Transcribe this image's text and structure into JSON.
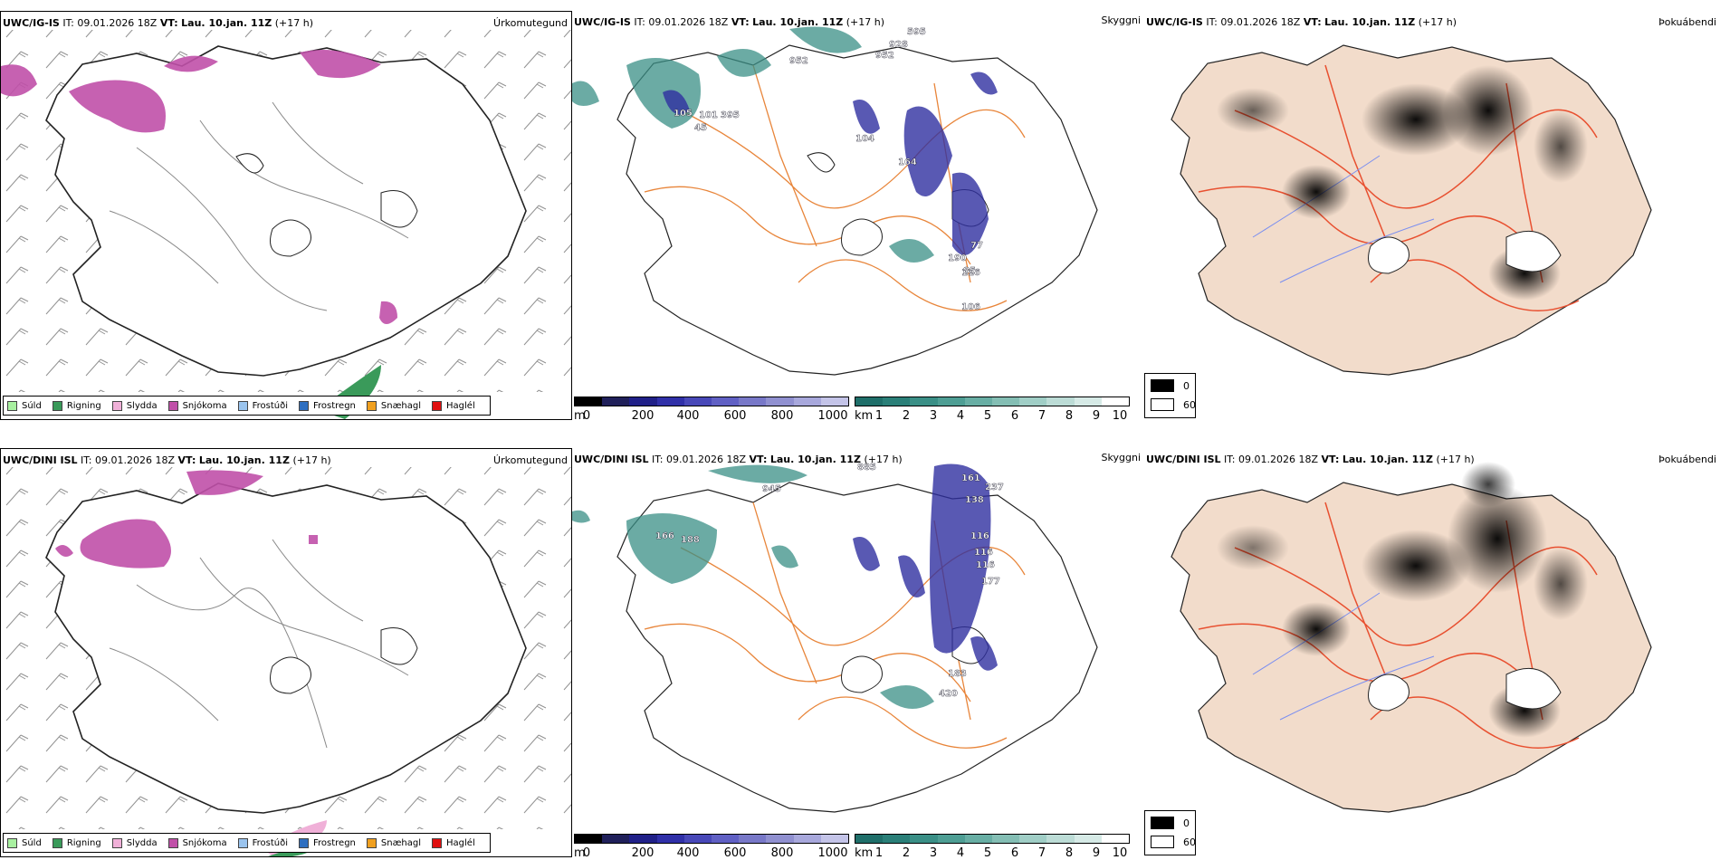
{
  "rows": [
    {
      "model": "UWC/IG-IS",
      "it_label": "IT:",
      "it_value": "09.01.2026 18Z",
      "vt_label": "VT:",
      "vt_value": "Lau. 10.jan. 11Z",
      "lead": "(+17 h)",
      "types": [
        "Úrkomutegund",
        "Skyggni",
        "Þokuábendi"
      ],
      "vis_numbers": [
        "952",
        "595",
        "928",
        "952",
        "105",
        "101",
        "395",
        "45",
        "104",
        "164",
        "190",
        "116",
        "77",
        "85",
        "106"
      ]
    },
    {
      "model": "UWC/DINI ISL",
      "it_label": "IT:",
      "it_value": "09.01.2026 18Z",
      "vt_label": "VT:",
      "vt_value": "Lau. 10.jan. 11Z",
      "lead": "(+17 h)",
      "types": [
        "Úrkomutegund",
        "Skyggni",
        "Þokuábendi"
      ],
      "vis_numbers": [
        "945",
        "885",
        "161",
        "237",
        "116",
        "116",
        "116",
        "138",
        "177",
        "183",
        "420",
        "188",
        "166"
      ]
    }
  ],
  "precip_legend": [
    {
      "label": "Súld",
      "color": "#a8f0a0"
    },
    {
      "label": "Rigning",
      "color": "#3a9a5a"
    },
    {
      "label": "Slydda",
      "color": "#f0b0d8"
    },
    {
      "label": "Snjókoma",
      "color": "#c050a8"
    },
    {
      "label": "Frostúði",
      "color": "#9ac4ee"
    },
    {
      "label": "Frostregn",
      "color": "#2f6fc0"
    },
    {
      "label": "Snæhagl",
      "color": "#f0a020"
    },
    {
      "label": "Haglél",
      "color": "#e01010"
    }
  ],
  "vis_m_bar": {
    "unit": "m",
    "ticks": [
      "0",
      "200",
      "400",
      "600",
      "800",
      "1000"
    ],
    "colors": [
      "#000000",
      "#20205a",
      "#202088",
      "#3030a8",
      "#4848b8",
      "#6060c4",
      "#7878c8",
      "#9090d0",
      "#a8a8dc",
      "#c4c4e8"
    ]
  },
  "vis_km_bar": {
    "unit": "km",
    "ticks": [
      "1",
      "2",
      "3",
      "4",
      "5",
      "6",
      "7",
      "8",
      "9",
      "10"
    ],
    "colors": [
      "#1f6f6a",
      "#2a7f78",
      "#3a8f86",
      "#4e9e94",
      "#68aea4",
      "#84beb4",
      "#a0cec6",
      "#bcdcd6",
      "#d6eae6",
      "#ffffff"
    ]
  },
  "fog_legend": {
    "low": "0",
    "high": "60"
  },
  "map_colors": {
    "snow": "#c050a8",
    "rain": "#3a9a5a",
    "vis_blue": "#3030a0",
    "vis_teal": "#3a8f86",
    "roads": "#e8853a",
    "land_fog": "#f2dccb",
    "fog_roads": "#e85030",
    "rivers": "#7a8ef0"
  }
}
